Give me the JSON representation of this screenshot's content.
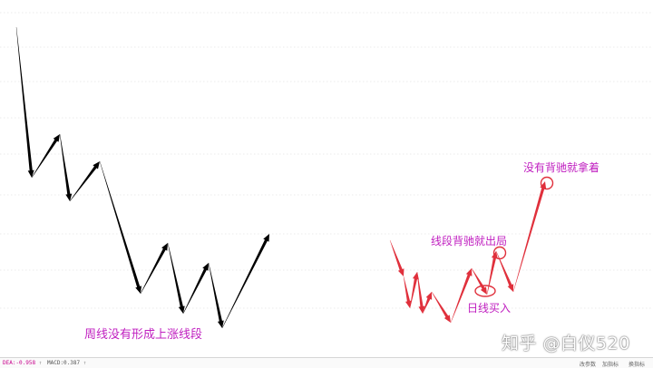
{
  "chart_data": {
    "type": "line",
    "title": "",
    "xlabel": "",
    "ylabel": "",
    "grid": true,
    "series": [
      {
        "color": "#000000",
        "points": [
          [
            18,
            30
          ],
          [
            35,
            196
          ],
          [
            66,
            148
          ],
          [
            77,
            222
          ],
          [
            110,
            178
          ],
          [
            155,
            324
          ],
          [
            185,
            268
          ],
          [
            202,
            346
          ],
          [
            230,
            290
          ],
          [
            245,
            362
          ],
          [
            297,
            258
          ]
        ]
      },
      {
        "color": "#e0303c",
        "points": [
          [
            430,
            265
          ],
          [
            445,
            305
          ],
          [
            452,
            340
          ],
          [
            460,
            300
          ],
          [
            466,
            346
          ],
          [
            476,
            322
          ],
          [
            497,
            356
          ],
          [
            520,
            296
          ],
          [
            537,
            325
          ],
          [
            547,
            277
          ],
          [
            566,
            322
          ],
          [
            601,
            200
          ]
        ]
      }
    ],
    "annotations": [
      {
        "id": "weekly",
        "text": "周线没有形成上涨线段",
        "color": "#c020c0"
      },
      {
        "id": "segment",
        "text": "线段背驰就出局",
        "color": "#c020c0"
      },
      {
        "id": "hold",
        "text": "没有背驰就拿着",
        "color": "#c020c0"
      },
      {
        "id": "daily",
        "text": "日线买入",
        "color": "#c020c0"
      }
    ],
    "markers": [
      {
        "id": "daily-buy-circle",
        "color": "#e0303c"
      },
      {
        "id": "segment-exit-circle",
        "color": "#e0303c"
      },
      {
        "id": "hold-circle",
        "color": "#e0303c"
      }
    ]
  },
  "watermark": "知乎 @白仪520",
  "bottom_bar": {
    "dea": "DEA:-0.958",
    "macd": "MACD:0.387",
    "arrow": "↑",
    "buttons": [
      "改参数",
      "加指标",
      "换指标"
    ]
  }
}
